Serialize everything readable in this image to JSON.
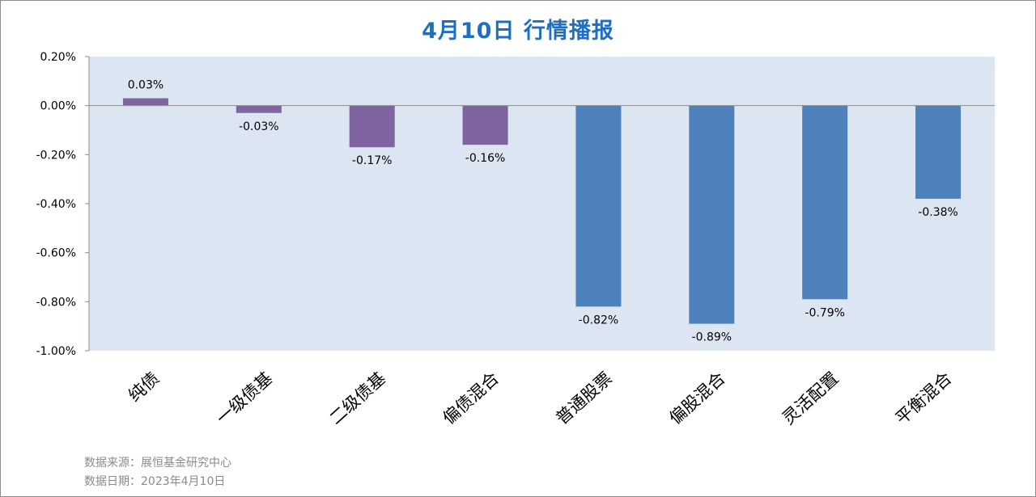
{
  "title": "4月10日  行情播报",
  "footnotes": {
    "source": "数据来源：展恒基金研究中心",
    "date": "数据日期：2023年4月10日"
  },
  "colors": {
    "plot_background": "#dce6f2",
    "bond_bar": "#8064a2",
    "equity_bar": "#4f81bd",
    "title": "#1f6fc0"
  },
  "chart_data": {
    "type": "bar",
    "title": "4月10日  行情播报",
    "categories": [
      "纯债",
      "一级债基",
      "二级债基",
      "偏债混合",
      "普通股票",
      "偏股混合",
      "灵活配置",
      "平衡混合"
    ],
    "values": [
      0.03,
      -0.03,
      -0.17,
      -0.16,
      -0.82,
      -0.89,
      -0.79,
      -0.38
    ],
    "data_labels": [
      "0.03%",
      "-0.03%",
      "-0.17%",
      "-0.16%",
      "-0.82%",
      "-0.89%",
      "-0.79%",
      "-0.38%"
    ],
    "bar_colors": [
      "#8064a2",
      "#8064a2",
      "#8064a2",
      "#8064a2",
      "#4f81bd",
      "#4f81bd",
      "#4f81bd",
      "#4f81bd"
    ],
    "ylim": [
      -1.0,
      0.2
    ],
    "yticks": [
      0.2,
      0.0,
      -0.2,
      -0.4,
      -0.6,
      -0.8,
      -1.0
    ],
    "ytick_labels": [
      "0.20%",
      "0.00%",
      "-0.20%",
      "-0.40%",
      "-0.60%",
      "-0.80%",
      "-1.00%"
    ],
    "xlabel": "",
    "ylabel": "",
    "grid": false,
    "legend": "none"
  }
}
